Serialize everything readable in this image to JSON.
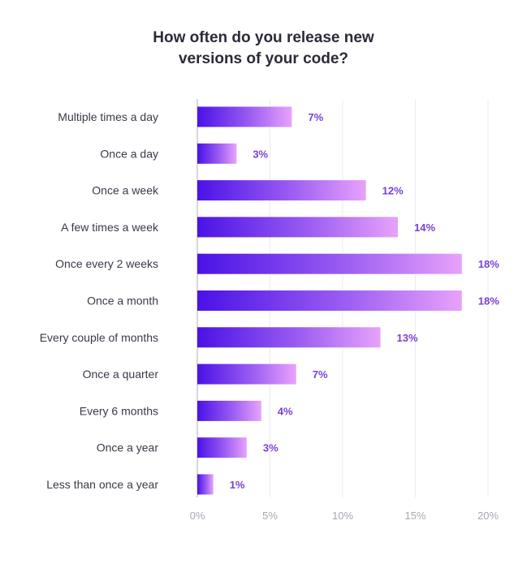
{
  "chart_data": {
    "type": "bar",
    "orientation": "horizontal",
    "title_lines": [
      "How often do you release new",
      "versions of your code?"
    ],
    "categories": [
      "Multiple times a day",
      "Once a day",
      "Once a week",
      "A few  times a week",
      "Once every 2 weeks",
      "Once a month",
      "Every couple of months",
      "Once a quarter",
      "Every 6 months",
      "Once a year",
      "Less than once a year"
    ],
    "values": [
      6.5,
      2.7,
      11.6,
      13.8,
      18.2,
      18.2,
      12.6,
      6.8,
      4.4,
      3.4,
      1.1
    ],
    "value_labels": [
      "7%",
      "3%",
      "12%",
      "14%",
      "18%",
      "18%",
      "13%",
      "7%",
      "4%",
      "3%",
      "1%"
    ],
    "xlim": [
      0,
      20
    ],
    "x_ticks": [
      0,
      5,
      10,
      15,
      20
    ],
    "x_tick_labels": [
      "0%",
      "5%",
      "10%",
      "15%",
      "20%"
    ],
    "grid": true,
    "colors": {
      "bar_start": "#4a12e6",
      "bar_mid": "#9a5cf2",
      "bar_end": "#e8a2fb",
      "value_label": "#7a3fd8",
      "grid": "#ececf2",
      "axis": "#bcbcc8"
    }
  }
}
